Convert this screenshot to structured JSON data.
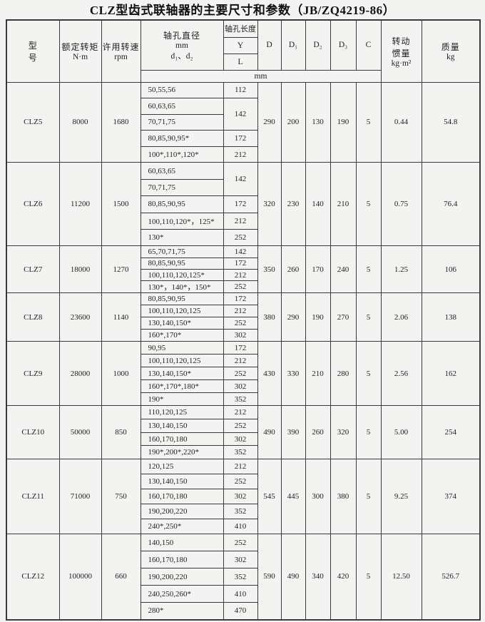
{
  "title": "CLZ型齿式联轴器的主要尺寸和参数（JB/ZQ4219-86）",
  "header": {
    "model_l1": "型",
    "model_l2": "号",
    "torque_l1": "额定转矩",
    "torque_l2": "N·m",
    "speed_l1": "许用转速",
    "speed_l2": "rpm",
    "bore_l1": "轴孔直径",
    "bore_l2": "mm",
    "bore_l3": "d₁、d₂",
    "length_label": "轴孔长度",
    "length_y": "Y",
    "length_l": "L",
    "col_d": "D",
    "col_d1": "D₁",
    "col_d2": "D₂",
    "col_d3": "D₃",
    "col_c": "C",
    "inertia_l1": "转动",
    "inertia_l2": "惯量",
    "inertia_l3": "kg·m²",
    "mass_l1": "质量",
    "mass_l2": "kg",
    "unit_mm": "mm"
  },
  "groups": [
    {
      "model": "CLZ5",
      "torque": "8000",
      "speed": "1680",
      "bores": [
        {
          "d": "50,55,56",
          "len": "112"
        },
        {
          "d": "60,63,65",
          "len": "142",
          "span": 2
        },
        {
          "d": "70,71,75"
        },
        {
          "d": "80,85,90,95*",
          "len": "172"
        },
        {
          "d": "100*,110*,120*",
          "len": "212"
        }
      ],
      "D": "290",
      "D1": "200",
      "D2": "130",
      "D3": "190",
      "C": "5",
      "inertia": "0.44",
      "mass": "54.8"
    },
    {
      "model": "CLZ6",
      "torque": "11200",
      "speed": "1500",
      "bores": [
        {
          "d": "60,63,65",
          "len": "142",
          "span": 2
        },
        {
          "d": "70,71,75"
        },
        {
          "d": "80,85,90,95",
          "len": "172"
        },
        {
          "d": "100,110,120*，125*",
          "len": "212"
        },
        {
          "d": "130*",
          "len": "252"
        }
      ],
      "D": "320",
      "D1": "230",
      "D2": "140",
      "D3": "210",
      "C": "5",
      "inertia": "0.75",
      "mass": "76.4"
    },
    {
      "model": "CLZ7",
      "torque": "18000",
      "speed": "1270",
      "bores": [
        {
          "d": "65,70,71,75",
          "len": "142"
        },
        {
          "d": "80,85,90,95",
          "len": "172"
        },
        {
          "d": "100,110,120,125*",
          "len": "212"
        },
        {
          "d": "130*，140*，150*",
          "len": "252"
        }
      ],
      "D": "350",
      "D1": "260",
      "D2": "170",
      "D3": "240",
      "C": "5",
      "inertia": "1.25",
      "mass": "106"
    },
    {
      "model": "CLZ8",
      "torque": "23600",
      "speed": "1140",
      "bores": [
        {
          "d": "80,85,90,95",
          "len": "172"
        },
        {
          "d": "100,110,120,125",
          "len": "212"
        },
        {
          "d": "130,140,150*",
          "len": "252"
        },
        {
          "d": "160*,170*",
          "len": "302"
        }
      ],
      "D": "380",
      "D1": "290",
      "D2": "190",
      "D3": "270",
      "C": "5",
      "inertia": "2.06",
      "mass": "138"
    },
    {
      "model": "CLZ9",
      "torque": "28000",
      "speed": "1000",
      "bores": [
        {
          "d": "90,95",
          "len": "172"
        },
        {
          "d": "100,110,120,125",
          "len": "212"
        },
        {
          "d": "130,140,150*",
          "len": "252"
        },
        {
          "d": "160*,170*,180*",
          "len": "302"
        },
        {
          "d": "190*",
          "len": "352"
        }
      ],
      "D": "430",
      "D1": "330",
      "D2": "210",
      "D3": "280",
      "C": "5",
      "inertia": "2.56",
      "mass": "162"
    },
    {
      "model": "CLZ10",
      "torque": "50000",
      "speed": "850",
      "bores": [
        {
          "d": "110,120,125",
          "len": "212"
        },
        {
          "d": "130,140,150",
          "len": "252"
        },
        {
          "d": "160,170,180",
          "len": "302"
        },
        {
          "d": "190*,200*,220*",
          "len": "352"
        }
      ],
      "D": "490",
      "D1": "390",
      "D2": "260",
      "D3": "320",
      "C": "5",
      "inertia": "5.00",
      "mass": "254"
    },
    {
      "model": "CLZ11",
      "torque": "71000",
      "speed": "750",
      "bores": [
        {
          "d": "120,125",
          "len": "212"
        },
        {
          "d": "130,140,150",
          "len": "252"
        },
        {
          "d": "160,170,180",
          "len": "302"
        },
        {
          "d": "190,200,220",
          "len": "352"
        },
        {
          "d": "240*,250*",
          "len": "410"
        }
      ],
      "D": "545",
      "D1": "445",
      "D2": "300",
      "D3": "380",
      "C": "5",
      "inertia": "9.25",
      "mass": "374"
    },
    {
      "model": "CLZ12",
      "torque": "100000",
      "speed": "660",
      "bores": [
        {
          "d": "140,150",
          "len": "252"
        },
        {
          "d": "160,170,180",
          "len": "302"
        },
        {
          "d": "190,200,220",
          "len": "352"
        },
        {
          "d": "240,250,260*",
          "len": "410"
        },
        {
          "d": "280*",
          "len": "470"
        }
      ],
      "D": "590",
      "D1": "490",
      "D2": "340",
      "D3": "420",
      "C": "5",
      "inertia": "12.50",
      "mass": "526.7"
    }
  ]
}
